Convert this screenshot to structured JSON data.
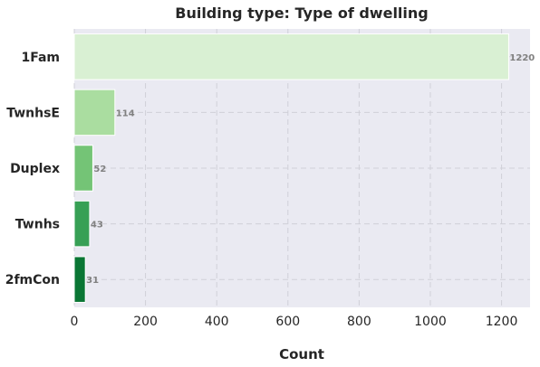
{
  "chart_data": {
    "type": "bar",
    "orientation": "horizontal",
    "title": "Building type: Type of dwelling",
    "xlabel": "Count",
    "ylabel": "",
    "categories": [
      "1Fam",
      "TwnhsE",
      "Duplex",
      "Twnhs",
      "2fmCon"
    ],
    "values": [
      1220,
      114,
      52,
      43,
      31
    ],
    "value_labels": [
      "1220",
      "114",
      "52",
      "43",
      "31"
    ],
    "colors": [
      "#d9f0d3",
      "#aadda0",
      "#74c476",
      "#37a055",
      "#0a7634"
    ],
    "xlim": [
      0,
      1280
    ],
    "xticks": [
      0,
      200,
      400,
      600,
      800,
      1000,
      1200
    ],
    "xtick_labels": [
      "0",
      "200",
      "400",
      "600",
      "800",
      "1000",
      "1200"
    ],
    "grid": true,
    "grid_style": "dashed",
    "background": "#eaeaf2"
  }
}
